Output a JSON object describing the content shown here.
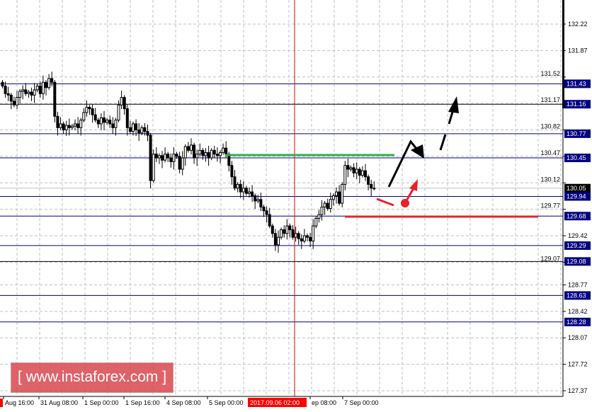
{
  "chart_data": {
    "type": "candlestick",
    "title": "",
    "ylim": [
      127.3,
      132.55
    ],
    "grid": true,
    "y_ticks": [
      "132.22",
      "131.87",
      "131.52",
      "131.17",
      "130.82",
      "130.47",
      "130.12",
      "129.77",
      "129.42",
      "129.07",
      "128.77",
      "128.42",
      "128.07",
      "127.72",
      "127.37"
    ],
    "x_tick_labels": [
      "Aug 16:00",
      "31 Aug 08:00",
      "1 Sep 00:00",
      "1 Sep 16:00",
      "4 Sep 08:00",
      "5 Sep 00:00",
      "ep 08:00",
      "7 Sep 00:00"
    ],
    "cursor_time_label": "2017.09.06 02:00",
    "closes": [
      131.4,
      131.3,
      131.28,
      131.2,
      131.15,
      131.25,
      131.33,
      131.35,
      131.3,
      131.32,
      131.28,
      131.35,
      131.4,
      131.3,
      131.45,
      131.38,
      131.5,
      131.45,
      131.0,
      130.85,
      130.9,
      130.82,
      130.88,
      130.85,
      130.87,
      130.9,
      130.85,
      130.95,
      131.05,
      131.12,
      131.1,
      131.02,
      130.95,
      130.9,
      130.98,
      130.92,
      130.95,
      130.9,
      130.85,
      130.95,
      131.15,
      131.25,
      131.1,
      130.85,
      130.8,
      130.9,
      130.82,
      130.78,
      130.85,
      130.8,
      130.75,
      130.15,
      130.5,
      130.45,
      130.48,
      130.42,
      130.5,
      130.45,
      130.4,
      130.5,
      130.47,
      130.3,
      130.45,
      130.6,
      130.55,
      130.62,
      130.45,
      130.5,
      130.55,
      130.48,
      130.52,
      130.45,
      130.55,
      130.5,
      130.48,
      130.52,
      130.58,
      130.5,
      130.35,
      130.2,
      130.05,
      130.1,
      130.0,
      130.05,
      129.98,
      130.0,
      129.95,
      129.88,
      129.9,
      129.8,
      129.75,
      129.7,
      129.55,
      129.45,
      129.3,
      129.4,
      129.5,
      129.45,
      129.55,
      129.5,
      129.4,
      129.45,
      129.38,
      129.35,
      129.42,
      129.4,
      129.35,
      129.55,
      129.65,
      129.7,
      129.8,
      129.85,
      129.78,
      129.9,
      129.95,
      130.0,
      129.85,
      130.1,
      130.35,
      130.3,
      130.32,
      130.25,
      130.3,
      130.22,
      130.28,
      130.2,
      130.1,
      130.05,
      130.05
    ],
    "levels": [
      {
        "price": "131.43",
        "color": "#000080"
      },
      {
        "price": "131.16",
        "color": "#000000"
      },
      {
        "price": "130.77",
        "color": "#000080"
      },
      {
        "price": "130.45",
        "color": "#000080"
      },
      {
        "price": "129.94",
        "color": "#000080"
      },
      {
        "price": "129.68",
        "color": "#000080"
      },
      {
        "price": "129.29",
        "color": "#000080"
      },
      {
        "price": "129.08",
        "color": "#000000"
      },
      {
        "price": "128.63",
        "color": "#000080"
      },
      {
        "price": "128.28",
        "color": "#000080"
      }
    ],
    "current_price": "130.05",
    "resistance_line": {
      "price": 130.47,
      "color": "#2db34a"
    },
    "support_line": {
      "price": 129.68,
      "color": "#e8212b"
    }
  },
  "watermark": "[ www.instaforex.com ]",
  "colors": {
    "level": "#000080",
    "cursor": "#ff0000",
    "grid": "#c0c0c0",
    "watermark": "#d9434b"
  }
}
